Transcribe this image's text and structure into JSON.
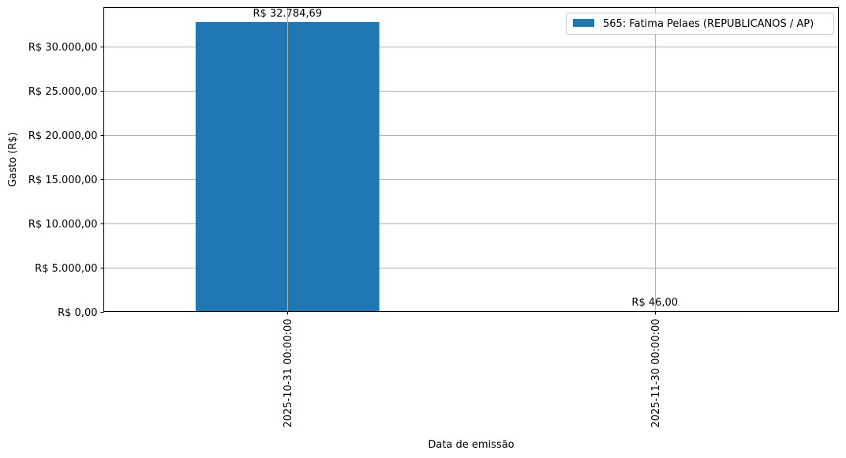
{
  "chart_data": {
    "type": "bar",
    "categories": [
      "2025-10-31 00:00:00",
      "2025-11-30 00:00:00"
    ],
    "series": [
      {
        "name": "565: Fatima Pelaes (REPUBLICANOS / AP)",
        "values": [
          32784.69,
          46.0
        ],
        "data_labels": [
          "R$ 32.784,69",
          "R$ 46,00"
        ],
        "color": "#1f77b4"
      }
    ],
    "xlabel": "Data de emissão",
    "ylabel": "Gasto (R$)",
    "ylim": [
      0,
      34425
    ],
    "yticks": [
      0,
      5000,
      10000,
      15000,
      20000,
      25000,
      30000
    ],
    "ytick_labels": [
      "R$ 0,00",
      "R$ 5.000,00",
      "R$ 10.000,00",
      "R$ 15.000,00",
      "R$ 20.000,00",
      "R$ 25.000,00",
      "R$ 30.000,00"
    ],
    "grid": true,
    "legend_position": "top-right"
  }
}
